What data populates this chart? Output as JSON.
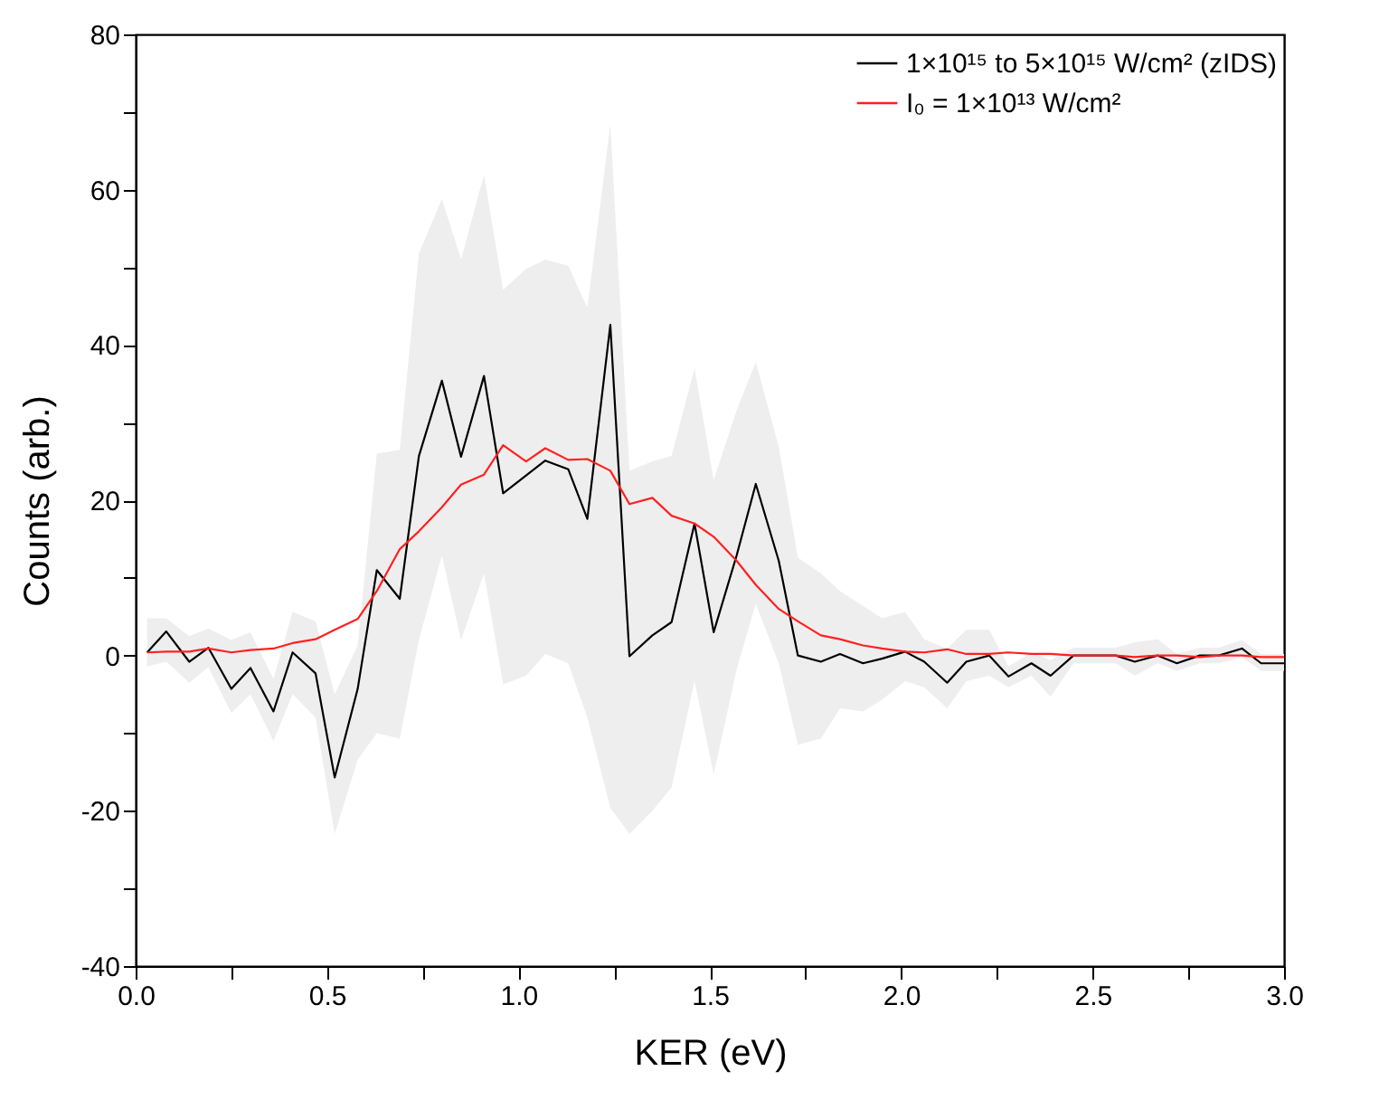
{
  "chart_data": {
    "type": "line",
    "xlabel": "KER (eV)",
    "ylabel": "Counts (arb.)",
    "x": [
      0.03,
      0.08,
      0.14,
      0.19,
      0.25,
      0.3,
      0.36,
      0.41,
      0.47,
      0.52,
      0.58,
      0.63,
      0.69,
      0.74,
      0.8,
      0.85,
      0.91,
      0.96,
      1.02,
      1.07,
      1.13,
      1.18,
      1.24,
      1.29,
      1.35,
      1.4,
      1.46,
      1.51,
      1.57,
      1.62,
      1.68,
      1.73,
      1.79,
      1.84,
      1.9,
      1.95,
      2.01,
      2.06,
      2.12,
      2.17,
      2.23,
      2.28,
      2.34,
      2.39,
      2.45,
      2.5,
      2.56,
      2.61,
      2.67,
      2.72,
      2.78,
      2.83,
      2.89,
      2.94,
      3.0
    ],
    "series": [
      {
        "name": "1×10¹⁵ to 5×10¹⁵ W/cm² (zIDS)",
        "color": "#000000",
        "values": [
          0.4,
          3.1,
          -0.8,
          1.0,
          -4.3,
          -1.6,
          -7.2,
          0.4,
          -2.3,
          -15.7,
          -4.3,
          11.0,
          7.3,
          25.7,
          35.4,
          25.6,
          36.0,
          20.9,
          23.2,
          25.1,
          24.0,
          17.6,
          42.6,
          -0.1,
          2.6,
          4.3,
          17.0,
          3.0,
          12.9,
          22.1,
          12.2,
          0,
          -0.8,
          0.2,
          -1.0,
          -0.4,
          0.5,
          -0.8,
          -3.5,
          -0.8,
          0,
          -2.7,
          -1.0,
          -2.6,
          0,
          0,
          0,
          -0.8,
          0,
          -1.0,
          0,
          0,
          0.9,
          -1.0,
          -1.0
        ],
        "upper": [
          4.8,
          4.8,
          2.5,
          3.5,
          2.0,
          3.0,
          -3.0,
          5.6,
          4.4,
          -5.0,
          1.3,
          26.0,
          26.5,
          51.8,
          58.8,
          51.0,
          61.9,
          47.1,
          49.8,
          51.0,
          50.2,
          44.8,
          68.4,
          23.8,
          25.0,
          25.7,
          37.0,
          22.6,
          31.6,
          37.8,
          26.9,
          12.6,
          10.6,
          8.3,
          6.4,
          4.8,
          5.6,
          2.1,
          0.9,
          3.3,
          3.3,
          -1.4,
          0.4,
          -0.6,
          1.0,
          1.0,
          1.0,
          1.7,
          2.1,
          0.2,
          1.0,
          1.0,
          2.0,
          0.2,
          0.2
        ],
        "lower": [
          -1.4,
          -0.8,
          -3.5,
          -1.5,
          -7.4,
          -5.0,
          -11.0,
          -5.0,
          -8.0,
          -23.0,
          -13.4,
          -10.0,
          -10.7,
          2.0,
          12.9,
          2.0,
          10.6,
          -3.7,
          -2.6,
          0.2,
          -1.0,
          -8.0,
          -19.6,
          -23.0,
          -20.0,
          -17.0,
          -3.3,
          -15.3,
          -1.8,
          6.7,
          -1.0,
          -11.5,
          -10.7,
          -6.8,
          -7.2,
          -5.7,
          -3.3,
          -4.1,
          -6.8,
          -3.3,
          -2.6,
          -4.1,
          -2.6,
          -5.3,
          -1.0,
          -1.0,
          -1.0,
          -2.6,
          -1.0,
          -2.0,
          -1.0,
          -1.0,
          -0.2,
          -2.0,
          -2.0
        ]
      },
      {
        "name": "I₀ = 1×10¹³ W/cm²",
        "color": "#ff2020",
        "values": [
          0.4,
          0.5,
          0.5,
          0.9,
          0.4,
          0.7,
          0.9,
          1.6,
          2.1,
          3.3,
          4.7,
          8.3,
          13.7,
          16.0,
          19.1,
          22.0,
          23.3,
          27.1,
          25.0,
          26.7,
          25.2,
          25.3,
          23.8,
          19.5,
          20.3,
          18.0,
          17.0,
          15.3,
          12.2,
          9.1,
          6.0,
          4.4,
          2.6,
          2.1,
          1.3,
          0.9,
          0.5,
          0.4,
          0.8,
          0.2,
          0.2,
          0.4,
          0.2,
          0.2,
          0,
          0,
          0,
          -0.2,
          0,
          0,
          -0.2,
          0,
          0,
          -0.2,
          -0.2
        ]
      }
    ],
    "xlim": [
      0,
      3
    ],
    "xticks": [
      {
        "value": 0,
        "label": "0.0"
      },
      {
        "value": 0.25,
        "label": null
      },
      {
        "value": 0.5,
        "label": "0.5"
      },
      {
        "value": 0.75,
        "label": null
      },
      {
        "value": 1,
        "label": "1.0"
      },
      {
        "value": 1.25,
        "label": null
      },
      {
        "value": 1.5,
        "label": "1.5"
      },
      {
        "value": 1.75,
        "label": null
      },
      {
        "value": 2,
        "label": "2.0"
      },
      {
        "value": 2.25,
        "label": null
      },
      {
        "value": 2.5,
        "label": "2.5"
      },
      {
        "value": 2.75,
        "label": null
      },
      {
        "value": 3,
        "label": "3.0"
      }
    ],
    "ylim": [
      -40,
      80
    ],
    "yticks": [
      -40,
      {
        "value": -30,
        "label": null
      },
      -20,
      {
        "value": -10,
        "label": null
      },
      0,
      {
        "value": 10,
        "label": null
      },
      20,
      {
        "value": 30,
        "label": null
      },
      40,
      {
        "value": 50,
        "label": null
      },
      60,
      {
        "value": 70,
        "label": null
      },
      80
    ],
    "grid": false,
    "legend": "top right",
    "marker": "none",
    "line_style": "solid"
  }
}
